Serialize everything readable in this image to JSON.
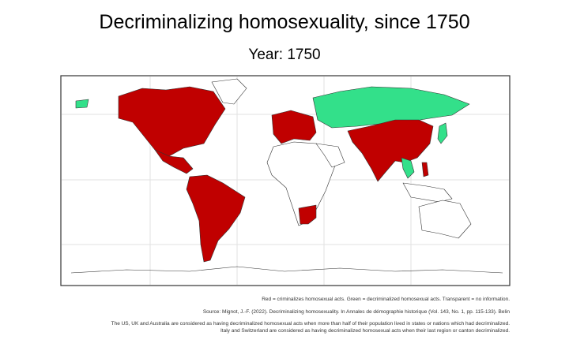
{
  "header": {
    "title": "Decriminalizing homosexuality, since 1750",
    "subtitle": "Year: 1750"
  },
  "notes": [
    "Red = criminalizes homosexual acts. Green = decriminalized homosexual acts. Transparent = no information.",
    "Source: Mignot, J.-F. (2022). Decriminalizing homosexuality. In Annales de démographie historique (Vol. 143, No. 1, pp. 115-133). Belin",
    "The US, UK and Australia are considered as having decriminalized homosexual acts when more than half of their population lived in states or nations which had decriminalized.",
    "Italy and Switzerland are considered as having decriminalized homosexual acts when their last region or canton decriminalized."
  ]
}
